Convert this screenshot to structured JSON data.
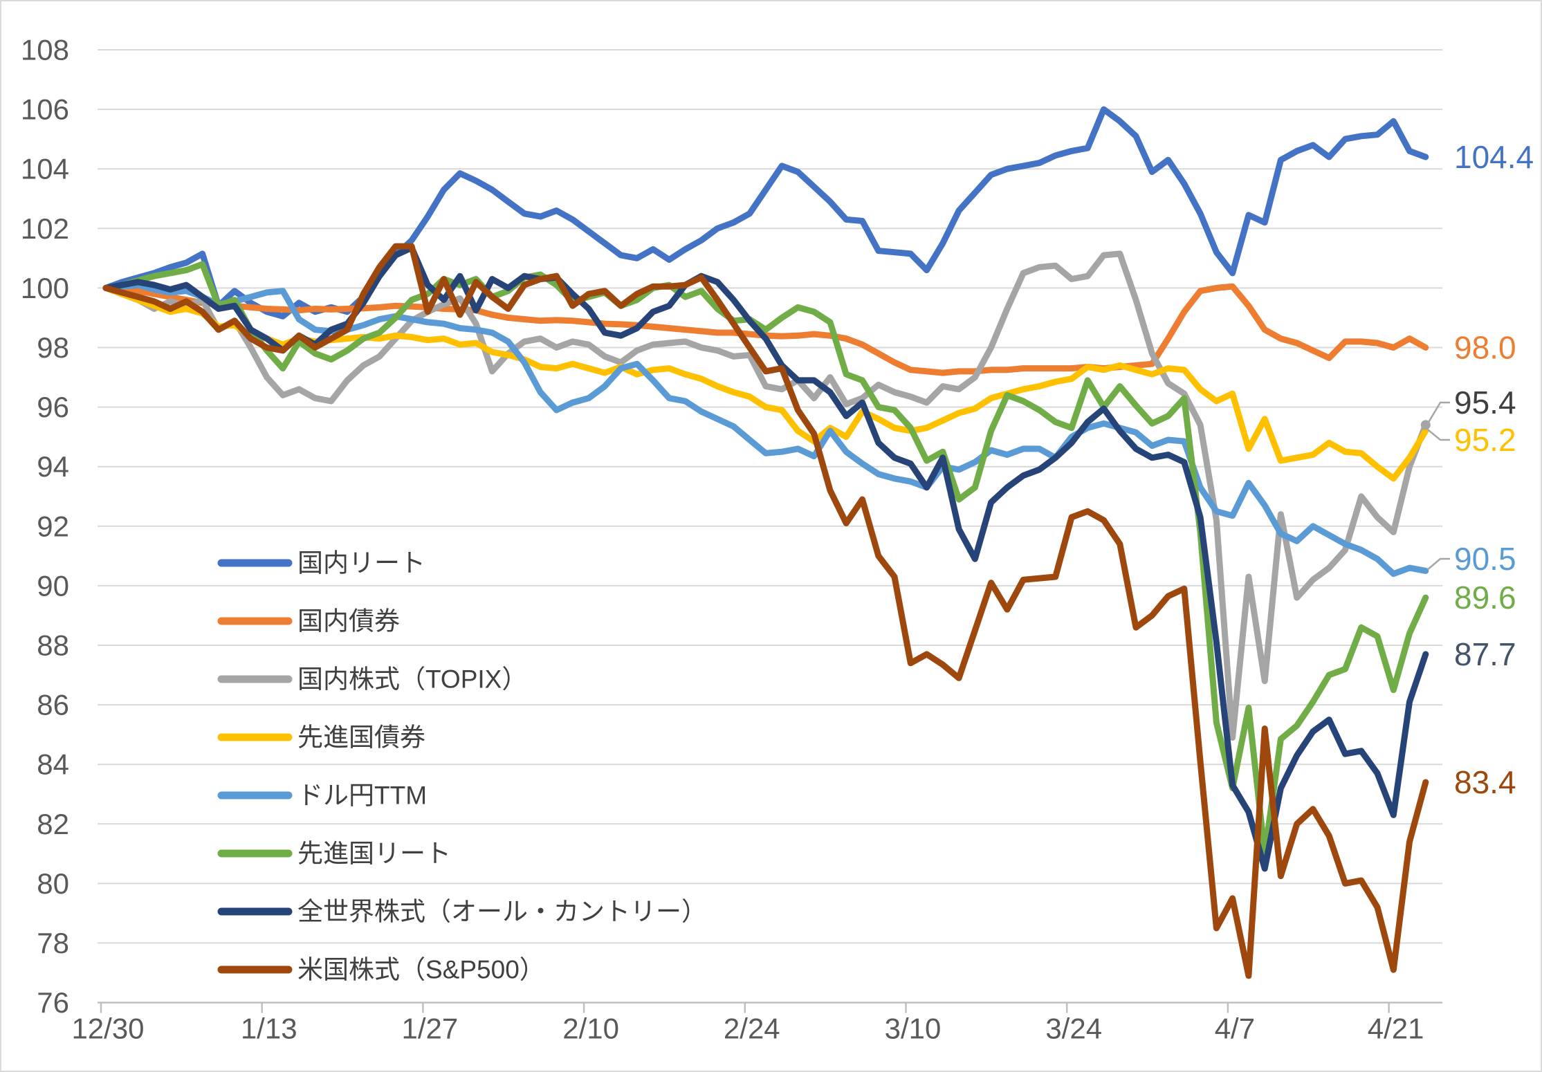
{
  "chart_data": {
    "type": "line",
    "title": "",
    "x_labels": [
      "12/30",
      "1/13",
      "1/27",
      "2/10",
      "2/24",
      "3/10",
      "3/24",
      "4/7",
      "4/21"
    ],
    "x_label_indices": [
      0,
      10,
      20,
      30,
      40,
      50,
      60,
      70,
      80
    ],
    "n_points": 83,
    "ylim": [
      76,
      108
    ],
    "y_tick_step": 2,
    "grid": "horizontal",
    "legend_position": "inside-left-bottom",
    "colors": {
      "grid": "#D9D9D9",
      "axis": "#BFBFBF",
      "tick_label": "#595959",
      "legend_text": "#404040",
      "leader": "#A6A6A6",
      "background": "#FFFFFF"
    },
    "series": [
      {
        "name": "国内リート",
        "color": "#4472C4",
        "end_label": "104.4",
        "end_label_color": "#4472C4",
        "leader": false,
        "values": [
          100,
          100.2,
          100.35,
          100.5,
          100.7,
          100.85,
          101.15,
          99.4,
          99.9,
          99.5,
          99.2,
          99.05,
          99.5,
          99.2,
          99.35,
          99.2,
          99.7,
          100.4,
          101.1,
          101.6,
          102.4,
          103.3,
          103.85,
          103.6,
          103.3,
          102.9,
          102.5,
          102.4,
          102.6,
          102.3,
          101.9,
          101.5,
          101.1,
          101.0,
          101.3,
          100.95,
          101.3,
          101.6,
          102.0,
          102.2,
          102.5,
          103.3,
          104.1,
          103.9,
          103.4,
          102.9,
          102.3,
          102.25,
          101.25,
          101.2,
          101.15,
          100.6,
          101.5,
          102.6,
          103.2,
          103.8,
          104.0,
          104.1,
          104.2,
          104.45,
          104.6,
          104.7,
          106.0,
          105.6,
          105.1,
          103.9,
          104.3,
          103.5,
          102.5,
          101.2,
          100.5,
          102.45,
          102.2,
          104.3,
          104.6,
          104.8,
          104.4,
          105.0,
          105.1,
          105.15,
          105.6,
          104.6,
          104.4
        ]
      },
      {
        "name": "国内債券",
        "color": "#ED7D31",
        "end_label": "98.0",
        "end_label_color": "#ED7D31",
        "leader": false,
        "values": [
          100,
          99.95,
          99.9,
          99.8,
          99.7,
          99.6,
          99.5,
          99.45,
          99.4,
          99.35,
          99.3,
          99.28,
          99.25,
          99.3,
          99.28,
          99.3,
          99.32,
          99.35,
          99.4,
          99.38,
          99.35,
          99.3,
          99.28,
          99.25,
          99.1,
          99.0,
          98.95,
          98.9,
          98.92,
          98.9,
          98.85,
          98.8,
          98.78,
          98.75,
          98.7,
          98.65,
          98.6,
          98.55,
          98.5,
          98.5,
          98.45,
          98.4,
          98.38,
          98.4,
          98.45,
          98.4,
          98.3,
          98.1,
          97.8,
          97.5,
          97.25,
          97.2,
          97.15,
          97.2,
          97.2,
          97.25,
          97.25,
          97.3,
          97.3,
          97.3,
          97.3,
          97.35,
          97.3,
          97.35,
          97.4,
          97.45,
          98.3,
          99.2,
          99.9,
          100.0,
          100.05,
          99.4,
          98.6,
          98.3,
          98.15,
          97.9,
          97.65,
          98.2,
          98.2,
          98.15,
          98.0,
          98.3,
          98.0
        ]
      },
      {
        "name": "国内株式（TOPIX）",
        "color": "#A5A5A5",
        "end_label": "95.4",
        "end_label_color": "#404040",
        "leader": true,
        "end_dot": true,
        "values": [
          100,
          99.8,
          99.6,
          99.3,
          99.55,
          99.4,
          99.6,
          98.6,
          98.9,
          98.0,
          97.0,
          96.4,
          96.6,
          96.3,
          96.2,
          96.9,
          97.4,
          97.7,
          98.3,
          98.9,
          99.2,
          99.45,
          99.65,
          98.8,
          97.2,
          97.8,
          98.2,
          98.3,
          98.0,
          98.2,
          98.1,
          97.7,
          97.5,
          97.9,
          98.1,
          98.15,
          98.2,
          98.0,
          97.9,
          97.7,
          97.75,
          96.7,
          96.6,
          96.9,
          96.3,
          97.0,
          96.1,
          96.3,
          96.75,
          96.5,
          96.35,
          96.15,
          96.7,
          96.6,
          97.0,
          98.0,
          99.3,
          100.5,
          100.7,
          100.75,
          100.3,
          100.4,
          101.1,
          101.15,
          99.6,
          97.8,
          96.8,
          96.45,
          95.4,
          92.2,
          84.9,
          90.3,
          86.8,
          92.4,
          89.6,
          90.2,
          90.6,
          91.2,
          93.0,
          92.3,
          91.8,
          94.0,
          95.4
        ]
      },
      {
        "name": "先進国債券",
        "color": "#FFC000",
        "end_label": "95.2",
        "end_label_color": "#FFC000",
        "leader": true,
        "values": [
          100,
          99.8,
          99.6,
          99.4,
          99.2,
          99.3,
          99.15,
          98.7,
          98.75,
          98.4,
          98.3,
          98.1,
          98.3,
          98.2,
          98.25,
          98.3,
          98.35,
          98.3,
          98.4,
          98.35,
          98.25,
          98.3,
          98.1,
          98.15,
          97.85,
          97.75,
          97.6,
          97.35,
          97.3,
          97.45,
          97.3,
          97.15,
          97.35,
          97.1,
          97.25,
          97.3,
          97.1,
          96.95,
          96.7,
          96.5,
          96.35,
          96.0,
          95.9,
          95.2,
          94.85,
          95.3,
          95.0,
          95.85,
          95.6,
          95.3,
          95.2,
          95.3,
          95.55,
          95.8,
          95.95,
          96.3,
          96.45,
          96.6,
          96.7,
          96.85,
          96.95,
          97.35,
          97.25,
          97.4,
          97.25,
          97.1,
          97.3,
          97.25,
          96.6,
          96.2,
          96.45,
          94.6,
          95.6,
          94.2,
          94.3,
          94.4,
          94.8,
          94.5,
          94.45,
          94.0,
          93.6,
          94.3,
          95.2
        ]
      },
      {
        "name": "ドル円TTM",
        "color": "#5B9BD5",
        "end_label": "90.5",
        "end_label_color": "#5B9BD5",
        "leader": true,
        "values": [
          100,
          100.05,
          100.1,
          99.95,
          99.85,
          99.9,
          99.7,
          99.45,
          99.55,
          99.7,
          99.85,
          99.9,
          98.95,
          98.6,
          98.55,
          98.6,
          98.75,
          98.95,
          99.05,
          98.95,
          98.85,
          98.8,
          98.65,
          98.6,
          98.5,
          98.2,
          97.5,
          96.5,
          95.9,
          96.15,
          96.3,
          96.7,
          97.3,
          97.45,
          96.9,
          96.3,
          96.2,
          95.85,
          95.6,
          95.35,
          94.9,
          94.45,
          94.5,
          94.6,
          94.35,
          95.2,
          94.5,
          94.1,
          93.75,
          93.6,
          93.5,
          93.3,
          94.0,
          93.9,
          94.15,
          94.55,
          94.4,
          94.6,
          94.6,
          94.3,
          95.0,
          95.3,
          95.45,
          95.3,
          95.15,
          94.7,
          94.9,
          94.85,
          93.3,
          92.5,
          92.35,
          93.45,
          92.7,
          91.75,
          91.5,
          92.0,
          91.7,
          91.4,
          91.2,
          90.9,
          90.4,
          90.6,
          90.5
        ]
      },
      {
        "name": "先進国リート",
        "color": "#70AD47",
        "end_label": "89.6",
        "end_label_color": "#70AD47",
        "leader": false,
        "values": [
          100,
          100.1,
          100.25,
          100.4,
          100.5,
          100.6,
          100.8,
          99.4,
          99.6,
          98.6,
          97.9,
          97.3,
          98.2,
          97.8,
          97.6,
          97.9,
          98.3,
          98.5,
          99.0,
          99.6,
          99.8,
          100.3,
          100.1,
          100.3,
          99.7,
          99.9,
          100.35,
          100.45,
          100.1,
          99.55,
          99.7,
          99.85,
          99.4,
          99.6,
          100.0,
          100.1,
          99.7,
          99.9,
          99.3,
          98.9,
          98.95,
          98.6,
          99.0,
          99.35,
          99.2,
          98.85,
          97.1,
          96.9,
          96.0,
          95.9,
          95.3,
          94.2,
          94.5,
          92.9,
          93.3,
          95.2,
          96.4,
          96.2,
          95.9,
          95.5,
          95.3,
          96.9,
          96.0,
          96.7,
          96.05,
          95.45,
          95.7,
          96.3,
          91.8,
          85.4,
          83.2,
          85.9,
          81.0,
          84.85,
          85.3,
          86.1,
          87.0,
          87.2,
          88.6,
          88.3,
          86.5,
          88.4,
          89.6
        ]
      },
      {
        "name": "全世界株式（オール・カントリー）",
        "color": "#264478",
        "end_label": "87.7",
        "end_label_color": "#44546A",
        "leader": false,
        "values": [
          100,
          100.1,
          100.2,
          100.1,
          99.95,
          100.1,
          99.7,
          99.3,
          99.4,
          98.6,
          98.3,
          97.9,
          98.4,
          98.1,
          98.6,
          98.8,
          99.5,
          100.4,
          101.1,
          101.35,
          100.1,
          99.6,
          100.4,
          99.25,
          100.3,
          100.0,
          100.4,
          100.3,
          100.35,
          99.8,
          99.3,
          98.5,
          98.4,
          98.65,
          99.2,
          99.4,
          100.1,
          100.4,
          100.2,
          99.6,
          98.9,
          98.3,
          97.4,
          96.9,
          96.9,
          96.5,
          95.7,
          96.15,
          94.8,
          94.3,
          94.1,
          93.3,
          94.3,
          91.9,
          90.9,
          92.8,
          93.3,
          93.7,
          93.9,
          94.3,
          94.8,
          95.5,
          95.95,
          95.2,
          94.6,
          94.3,
          94.4,
          94.15,
          92.3,
          88.1,
          83.3,
          82.4,
          80.5,
          83.2,
          84.3,
          85.1,
          85.5,
          84.35,
          84.45,
          83.7,
          82.3,
          86.1,
          87.7
        ]
      },
      {
        "name": "米国株式（S&P500）",
        "color": "#9E480E",
        "end_label": "83.4",
        "end_label_color": "#9E480E",
        "leader": false,
        "values": [
          100,
          99.85,
          99.7,
          99.55,
          99.3,
          99.55,
          99.2,
          98.6,
          98.9,
          98.3,
          98.0,
          97.9,
          98.4,
          98.0,
          98.3,
          98.6,
          99.8,
          100.7,
          101.4,
          101.4,
          99.2,
          100.3,
          99.1,
          100.2,
          99.7,
          99.3,
          100.1,
          100.3,
          100.4,
          99.4,
          99.8,
          99.9,
          99.4,
          99.8,
          100.05,
          100.05,
          100.1,
          100.35,
          99.6,
          98.8,
          98.0,
          97.2,
          97.3,
          95.9,
          95.1,
          93.2,
          92.1,
          92.9,
          91.0,
          90.3,
          87.4,
          87.7,
          87.35,
          86.9,
          88.5,
          90.1,
          89.2,
          90.2,
          90.25,
          90.3,
          92.3,
          92.5,
          92.2,
          91.4,
          88.6,
          89.0,
          89.65,
          89.9,
          84.1,
          78.5,
          79.5,
          76.9,
          85.2,
          80.25,
          82.0,
          82.5,
          81.6,
          80.0,
          80.1,
          79.2,
          77.1,
          81.4,
          83.4
        ]
      }
    ]
  }
}
